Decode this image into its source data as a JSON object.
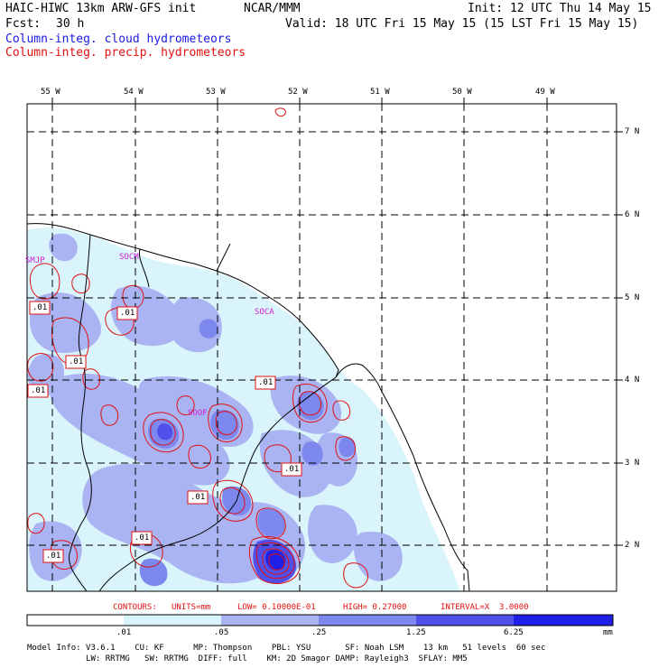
{
  "header": {
    "model_title": "HAIC-HIWC 13km ARW-GFS init",
    "org": "NCAR/MMM",
    "init": "Init: 12 UTC Thu 14 May 15",
    "fcst_label": "Fcst:",
    "fcst_value": "30 h",
    "valid": "Valid: 18 UTC Fri 15 May 15 (15 LST Fri 15 May 15)",
    "field_cloud": "Column-integ. cloud hydrometeors",
    "field_precip": "Column-integ. precip. hydrometeors"
  },
  "map": {
    "lon_labels": [
      "55 W",
      "54 W",
      "53 W",
      "52 W",
      "51 W",
      "50 W",
      "49 W"
    ],
    "lat_labels": [
      "7 N",
      "6 N",
      "5 N",
      "4 N",
      "3 N",
      "2 N"
    ],
    "stations": [
      "SMJP",
      "SOCM",
      "SOCA",
      "SOOF"
    ],
    "contour_labels": [
      ".01",
      ".01",
      ".01",
      ".01",
      ".01",
      ".01",
      ".01",
      ".01",
      ".01"
    ]
  },
  "contours_info": {
    "label": "CONTOURS:",
    "units": "UNITS=mm",
    "low": "LOW= 0.10000E-01",
    "high": "HIGH= 0.27000",
    "interval": "INTERVAL=X  3.0000"
  },
  "colorbar": {
    "ticks": [
      ".01",
      ".05",
      ".25",
      "1.25",
      "6.25"
    ],
    "units": "mm",
    "colors": [
      "#ffffff",
      "#d9f4fb",
      "#aab4f2",
      "#7d88ee",
      "#5050ea",
      "#1f1fe8"
    ]
  },
  "model_info": {
    "line1": "Model Info: V3.6.1    CU: KF      MP: Thompson    PBL: YSU       SF: Noah LSM    13 km   51 levels  60 sec",
    "line2": "            LW: RRTMG   SW: RRTMG  DIFF: full    KM: 2D Smagor DAMP: Rayleigh3  SFLAY: MM5"
  }
}
